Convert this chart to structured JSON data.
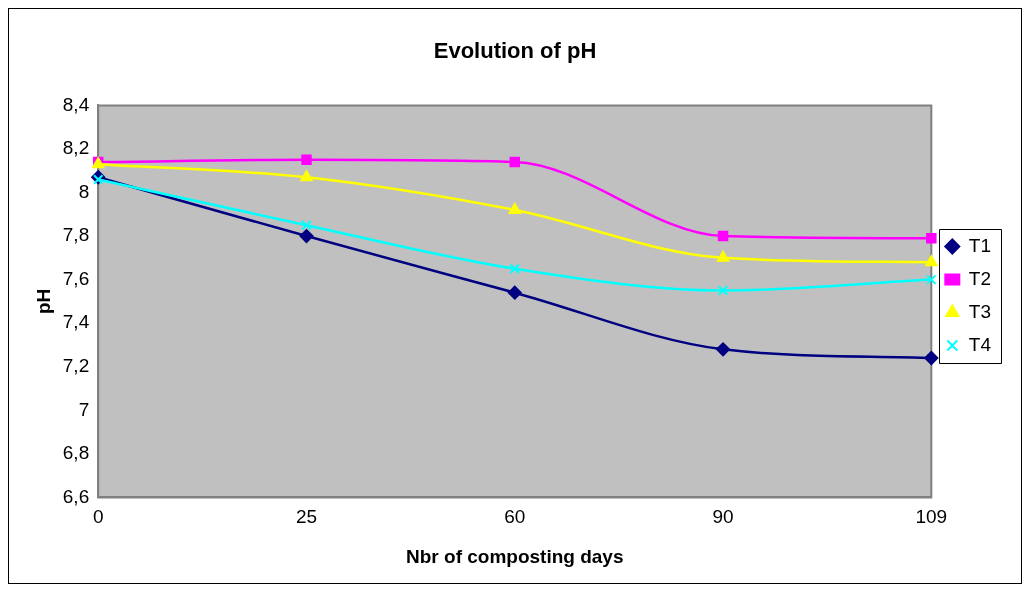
{
  "chart_data": {
    "type": "line",
    "title": "Evolution of pH",
    "xlabel": "Nbr of composting days",
    "ylabel": "pH",
    "categories": [
      "0",
      "25",
      "60",
      "90",
      "109"
    ],
    "series": [
      {
        "name": "T1",
        "color": "#000080",
        "marker": "diamond",
        "values": [
          8.07,
          7.8,
          7.54,
          7.28,
          7.24
        ]
      },
      {
        "name": "T2",
        "color": "#ff00ff",
        "marker": "square",
        "values": [
          8.14,
          8.15,
          8.14,
          7.8,
          7.79
        ]
      },
      {
        "name": "T3",
        "color": "#ffff00",
        "marker": "triangle",
        "values": [
          8.13,
          8.07,
          7.92,
          7.7,
          7.68
        ]
      },
      {
        "name": "T4",
        "color": "#00ffff",
        "marker": "cross",
        "values": [
          8.06,
          7.85,
          7.65,
          7.55,
          7.6
        ]
      }
    ],
    "ylim": [
      6.6,
      8.4
    ],
    "yticks": [
      {
        "value": 6.6,
        "label": "6,6"
      },
      {
        "value": 6.8,
        "label": "6,8"
      },
      7,
      {
        "value": 7.2,
        "label": "7,2"
      },
      {
        "value": 7.4,
        "label": "7,4"
      },
      {
        "value": 7.6,
        "label": "7,6"
      },
      {
        "value": 7.8,
        "label": "7,8"
      },
      8,
      {
        "value": 8.2,
        "label": "8,2"
      },
      {
        "value": 8.4,
        "label": "8,4"
      }
    ],
    "grid": false,
    "legend": "right",
    "line_style": "solid"
  }
}
